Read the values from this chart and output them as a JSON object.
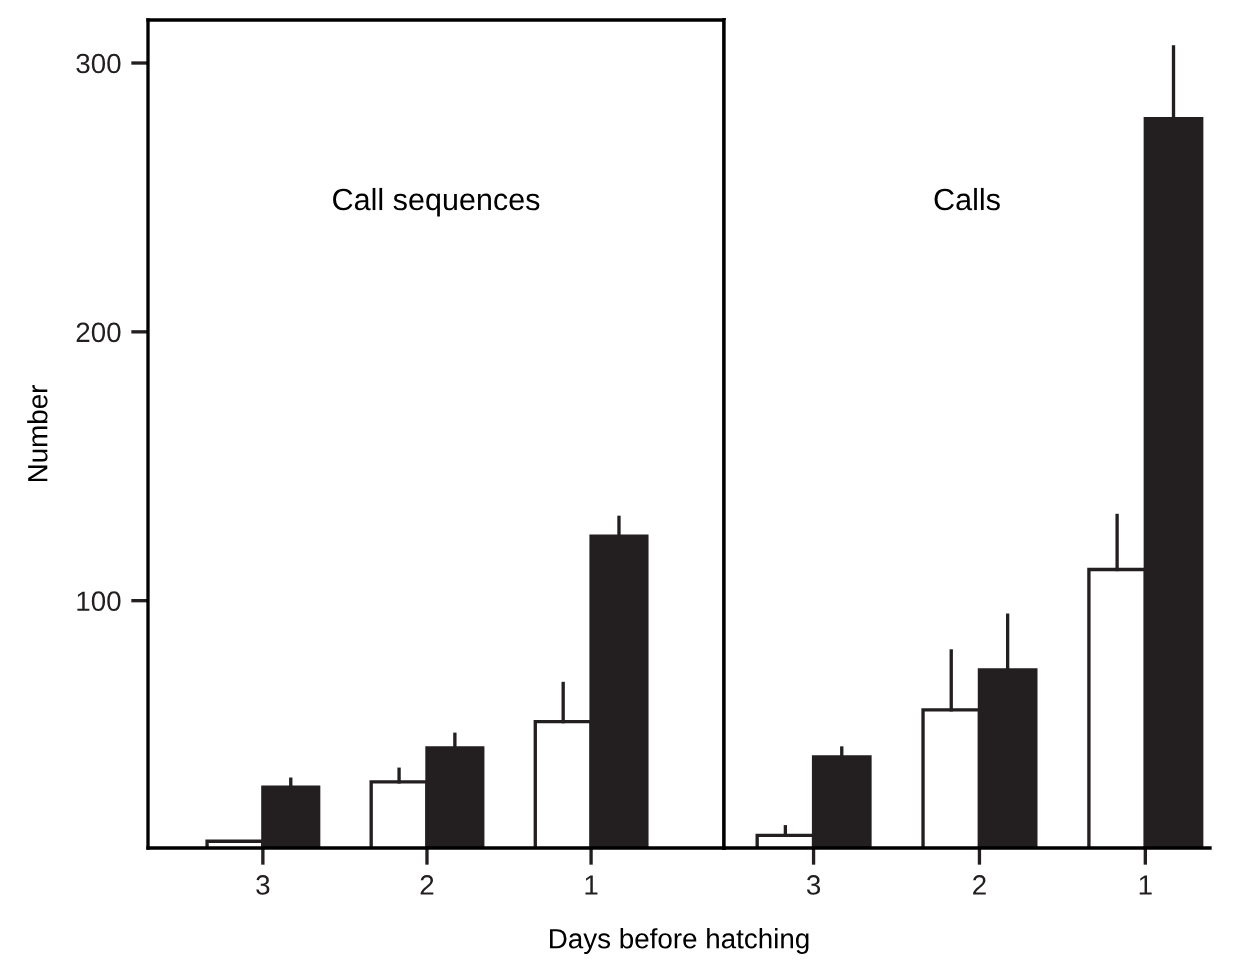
{
  "chart_data": [
    {
      "type": "bar",
      "title": "Call sequences",
      "xlabel": "Days before hatching",
      "ylabel": "Number",
      "categories": [
        "3",
        "2",
        "1"
      ],
      "series": [
        {
          "color": "#ffffff",
          "values": [
            10.5,
            32.6,
            55
          ],
          "errors": [
            null,
            [
              32.6,
              37.3
            ],
            [
              55,
              69.2
            ]
          ]
        },
        {
          "color": "#231f20",
          "values": [
            30.6,
            45.2,
            124
          ],
          "errors": [
            [
              30.6,
              33.6
            ],
            [
              45.2,
              50.3
            ],
            [
              124,
              131
            ]
          ]
        }
      ],
      "ylim": [
        8,
        316
      ],
      "yticks": [
        100,
        200,
        300
      ],
      "grid": false,
      "legend": false
    },
    {
      "type": "bar",
      "title": "Calls",
      "categories": [
        "3",
        "2",
        "1"
      ],
      "series": [
        {
          "color": "#ffffff",
          "values": [
            12.7,
            59.4,
            111.6
          ],
          "errors": [
            [
              12.7,
              15.9
            ],
            [
              59.4,
              81.3
            ],
            [
              111.6,
              131.7
            ]
          ]
        },
        {
          "color": "#231f20",
          "values": [
            41.9,
            74.2,
            279.3
          ],
          "errors": [
            [
              41.9,
              45.2
            ],
            [
              74.2,
              94.6
            ],
            [
              279.3,
              306
            ]
          ]
        }
      ],
      "ylim": [
        8,
        316
      ],
      "tick_labels": "x",
      "grid": false,
      "legend": false
    }
  ]
}
